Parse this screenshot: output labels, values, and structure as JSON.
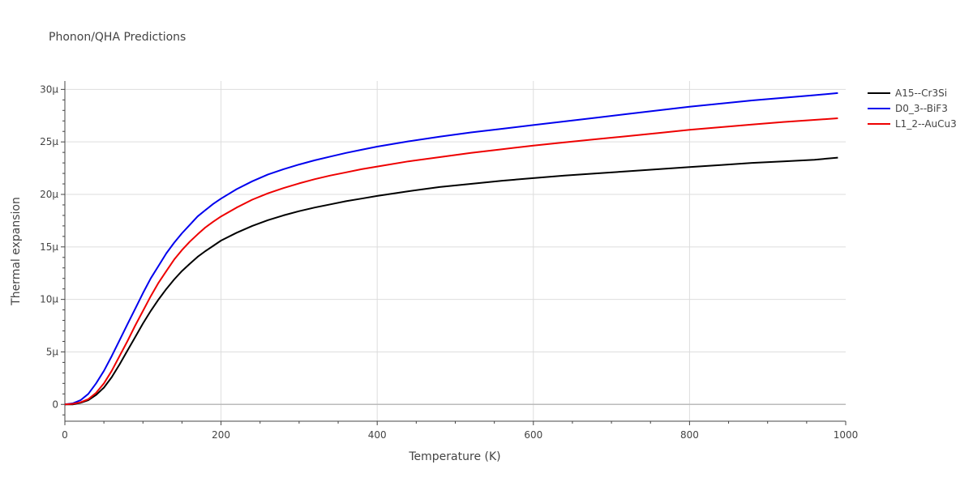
{
  "chart_data": {
    "type": "line",
    "title": "Phonon/QHA Predictions",
    "xlabel": "Temperature (K)",
    "ylabel": "Thermal expansion",
    "xlim": [
      0,
      1000
    ],
    "ylim": [
      -1.6,
      30.8
    ],
    "x_ticks": [
      0,
      200,
      400,
      600,
      800,
      1000
    ],
    "x_tick_labels": [
      "0",
      "200",
      "400",
      "600",
      "800",
      "1000"
    ],
    "y_ticks": [
      0,
      5,
      10,
      15,
      20,
      25,
      30
    ],
    "y_tick_labels": [
      "0",
      "5μ",
      "10μ",
      "15μ",
      "20μ",
      "25μ",
      "30μ"
    ],
    "y_unit": "1e-6 /K",
    "grid": true,
    "legend_position": "top-right",
    "series": [
      {
        "name": "A15--Cr3Si",
        "color": "#000000",
        "x": [
          0,
          10,
          20,
          30,
          40,
          50,
          60,
          70,
          80,
          90,
          100,
          110,
          120,
          130,
          140,
          150,
          160,
          170,
          180,
          190,
          200,
          220,
          240,
          260,
          280,
          300,
          320,
          340,
          360,
          380,
          400,
          440,
          480,
          520,
          560,
          600,
          640,
          680,
          720,
          760,
          800,
          840,
          880,
          920,
          960,
          990
        ],
        "y": [
          0,
          0,
          0.15,
          0.4,
          0.9,
          1.6,
          2.6,
          3.8,
          5.1,
          6.4,
          7.7,
          8.9,
          10.0,
          11.0,
          11.9,
          12.7,
          13.4,
          14.05,
          14.6,
          15.1,
          15.6,
          16.35,
          17.0,
          17.55,
          18.0,
          18.4,
          18.75,
          19.05,
          19.35,
          19.6,
          19.85,
          20.3,
          20.7,
          21.0,
          21.3,
          21.55,
          21.8,
          22.0,
          22.2,
          22.4,
          22.6,
          22.8,
          23.0,
          23.15,
          23.3,
          23.5
        ]
      },
      {
        "name": "D0_3--BiF3",
        "color": "#0000ee",
        "x": [
          0,
          10,
          20,
          30,
          40,
          50,
          60,
          70,
          80,
          90,
          100,
          110,
          120,
          130,
          140,
          150,
          160,
          170,
          180,
          190,
          200,
          220,
          240,
          260,
          280,
          300,
          320,
          340,
          360,
          380,
          400,
          440,
          480,
          520,
          560,
          600,
          640,
          680,
          720,
          760,
          800,
          840,
          880,
          920,
          960,
          990
        ],
        "y": [
          0,
          0.1,
          0.4,
          1.0,
          2.0,
          3.2,
          4.6,
          6.1,
          7.6,
          9.1,
          10.6,
          12.0,
          13.2,
          14.4,
          15.4,
          16.3,
          17.1,
          17.9,
          18.5,
          19.1,
          19.6,
          20.5,
          21.25,
          21.9,
          22.4,
          22.85,
          23.25,
          23.6,
          23.95,
          24.25,
          24.55,
          25.05,
          25.5,
          25.9,
          26.25,
          26.6,
          26.95,
          27.3,
          27.65,
          28.0,
          28.35,
          28.65,
          28.95,
          29.2,
          29.45,
          29.65
        ]
      },
      {
        "name": "L1_2--AuCu3",
        "color": "#ee0000",
        "x": [
          0,
          10,
          20,
          30,
          40,
          50,
          60,
          70,
          80,
          90,
          100,
          110,
          120,
          130,
          140,
          150,
          160,
          170,
          180,
          190,
          200,
          220,
          240,
          260,
          280,
          300,
          320,
          340,
          360,
          380,
          400,
          440,
          480,
          520,
          560,
          600,
          640,
          680,
          720,
          760,
          800,
          840,
          880,
          920,
          960,
          990
        ],
        "y": [
          0,
          0.05,
          0.2,
          0.5,
          1.1,
          2.0,
          3.2,
          4.6,
          6.0,
          7.5,
          8.9,
          10.3,
          11.6,
          12.7,
          13.8,
          14.7,
          15.5,
          16.2,
          16.85,
          17.4,
          17.9,
          18.75,
          19.5,
          20.1,
          20.6,
          21.05,
          21.45,
          21.8,
          22.1,
          22.4,
          22.65,
          23.15,
          23.55,
          23.95,
          24.3,
          24.65,
          24.95,
          25.25,
          25.55,
          25.85,
          26.15,
          26.4,
          26.65,
          26.9,
          27.1,
          27.25
        ]
      }
    ]
  }
}
